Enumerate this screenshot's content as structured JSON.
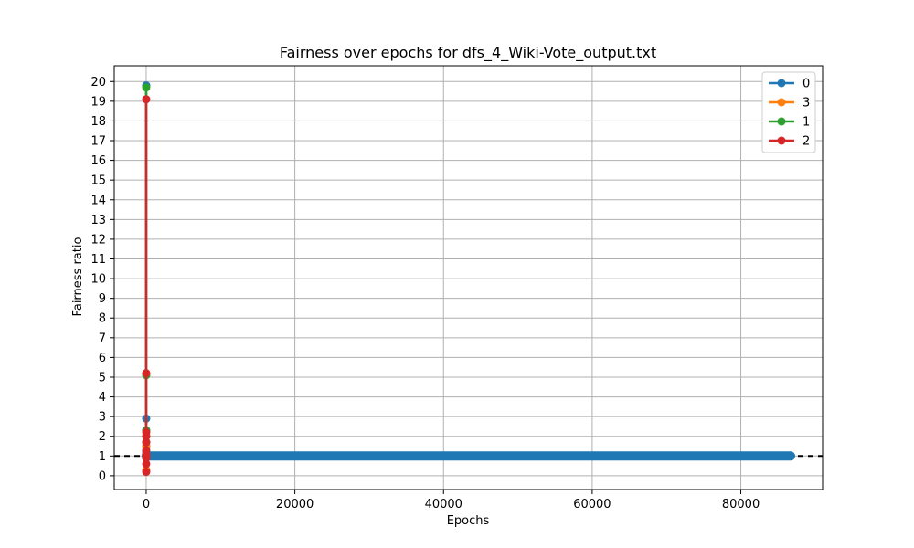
{
  "chart_data": {
    "type": "line",
    "title": "Fairness over epochs for dfs_4_Wiki-Vote_output.txt",
    "xlabel": "Epochs",
    "ylabel": "Fairness ratio",
    "xlim": [
      -4300,
      91000
    ],
    "ylim": [
      -0.7,
      20.8
    ],
    "x_ticks": [
      0,
      20000,
      40000,
      60000,
      80000
    ],
    "y_ticks": [
      0,
      1,
      2,
      3,
      4,
      5,
      6,
      7,
      8,
      9,
      10,
      11,
      12,
      13,
      14,
      15,
      16,
      17,
      18,
      19,
      20
    ],
    "grid": true,
    "legend_position": "top-right",
    "reference_line": {
      "y": 1,
      "style": "dashed",
      "color": "#000000"
    },
    "series": [
      {
        "name": "0",
        "color": "#1f77b4",
        "x": [
          0,
          0,
          0,
          0,
          0,
          0,
          500,
          86700
        ],
        "y": [
          19.8,
          2.9,
          2.3,
          1.5,
          1.2,
          1.0,
          1.0,
          1.0
        ],
        "dense_range": {
          "x_start": 0,
          "x_end": 86700,
          "y": 1.0
        }
      },
      {
        "name": "3",
        "color": "#ff7f0e",
        "x": [
          0,
          0,
          0,
          0
        ],
        "y": [
          0.3,
          1.0,
          1.5,
          2.0
        ]
      },
      {
        "name": "1",
        "color": "#2ca02c",
        "x": [
          0,
          0,
          0,
          0,
          0,
          0
        ],
        "y": [
          19.7,
          5.1,
          2.3,
          1.7,
          1.1,
          0.9
        ]
      },
      {
        "name": "2",
        "color": "#d62728",
        "x": [
          0,
          0,
          0,
          0,
          0,
          0,
          0,
          0,
          0,
          0,
          0
        ],
        "y": [
          19.1,
          5.2,
          2.2,
          2.0,
          1.7,
          1.3,
          1.1,
          1.0,
          0.9,
          0.6,
          0.2
        ]
      }
    ]
  }
}
